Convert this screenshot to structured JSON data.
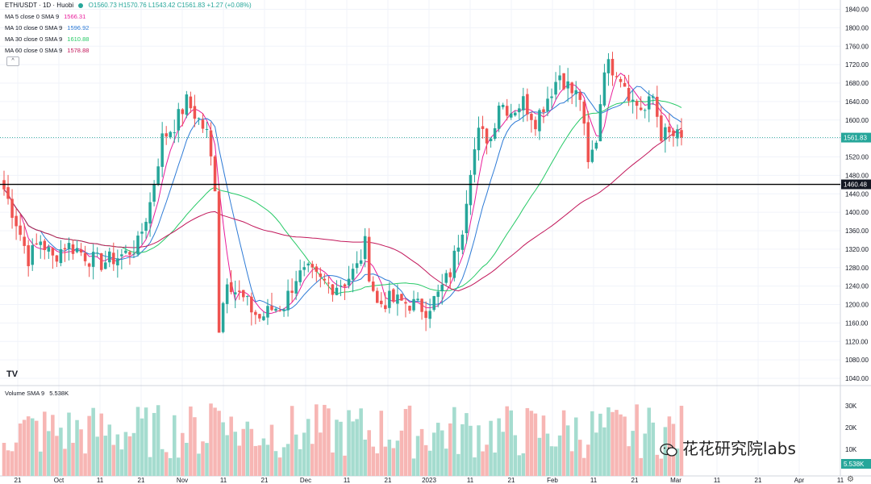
{
  "header": {
    "symbol": "ETH/USDT · 1D · Huobi",
    "ohlc": "O1560.73  H1570.76  L1543.42  C1561.83  +1.27 (+0.08%)"
  },
  "ma_indicators": [
    {
      "label": "MA 5 close 0 SMA 9",
      "value": "1566.31",
      "color": "#e91e9b"
    },
    {
      "label": "MA 10 close 0 SMA 9",
      "value": "1596.92",
      "color": "#2e7bd6"
    },
    {
      "label": "MA 30 close 0 SMA 9",
      "value": "1610.88",
      "color": "#26c966"
    },
    {
      "label": "MA 60 close 0 SMA 9",
      "value": "1578.88",
      "color": "#c2185b"
    }
  ],
  "volume_indicator": {
    "label": "Volume SMA 9",
    "value": "5.538K"
  },
  "watermark": "花花研究院labs",
  "logo": "TV",
  "collapse_glyph": "^",
  "settings_icon": "gear-icon",
  "colors": {
    "up": "#26a69a",
    "down": "#ef5350",
    "upVol": "#a5dccf",
    "downVol": "#f7b6b4"
  },
  "chart_data": {
    "type": "candlestick",
    "title": "ETH/USDT · 1D · Huobi",
    "ylim": [
      1020,
      1860
    ],
    "y_ticks": [
      1040,
      1080,
      1120,
      1160,
      1200,
      1240,
      1280,
      1320,
      1360,
      1400,
      1440,
      1480,
      1520,
      1560,
      1600,
      1640,
      1680,
      1720,
      1760,
      1800,
      1840
    ],
    "x_ticks": [
      "21",
      "Oct",
      "11",
      "21",
      "Nov",
      "11",
      "21",
      "Dec",
      "11",
      "21",
      "2023",
      "11",
      "21",
      "Feb",
      "11",
      "21",
      "Mar",
      "11",
      "21",
      "Apr",
      "11"
    ],
    "horizontal_level": 1460.48,
    "last_price": "1561.83",
    "level_label": "1460.48",
    "volume_ticks": [
      "30K",
      "20K",
      "10K"
    ],
    "volume_last": "5.538K",
    "close_anchors": [
      [
        0,
        1450
      ],
      [
        3,
        1380
      ],
      [
        6,
        1300
      ],
      [
        9,
        1340
      ],
      [
        12,
        1300
      ],
      [
        15,
        1330
      ],
      [
        18,
        1320
      ],
      [
        21,
        1300
      ],
      [
        24,
        1290
      ],
      [
        27,
        1300
      ],
      [
        30,
        1310
      ],
      [
        33,
        1330
      ],
      [
        36,
        1420
      ],
      [
        39,
        1560
      ],
      [
        42,
        1590
      ],
      [
        45,
        1640
      ],
      [
        48,
        1600
      ],
      [
        50,
        1570
      ],
      [
        52,
        1460
      ],
      [
        53,
        1150
      ],
      [
        55,
        1260
      ],
      [
        57,
        1230
      ],
      [
        60,
        1200
      ],
      [
        63,
        1170
      ],
      [
        66,
        1190
      ],
      [
        69,
        1200
      ],
      [
        72,
        1260
      ],
      [
        75,
        1270
      ],
      [
        78,
        1250
      ],
      [
        81,
        1240
      ],
      [
        84,
        1250
      ],
      [
        87,
        1280
      ],
      [
        89,
        1330
      ],
      [
        90,
        1270
      ],
      [
        92,
        1200
      ],
      [
        95,
        1210
      ],
      [
        98,
        1205
      ],
      [
        101,
        1200
      ],
      [
        104,
        1190
      ],
      [
        107,
        1220
      ],
      [
        110,
        1270
      ],
      [
        113,
        1370
      ],
      [
        115,
        1500
      ],
      [
        117,
        1570
      ],
      [
        120,
        1560
      ],
      [
        122,
        1640
      ],
      [
        125,
        1620
      ],
      [
        128,
        1640
      ],
      [
        131,
        1600
      ],
      [
        134,
        1650
      ],
      [
        137,
        1700
      ],
      [
        140,
        1660
      ],
      [
        142,
        1650
      ],
      [
        144,
        1500
      ],
      [
        146,
        1560
      ],
      [
        148,
        1720
      ],
      [
        151,
        1710
      ],
      [
        153,
        1680
      ],
      [
        155,
        1640
      ],
      [
        158,
        1620
      ],
      [
        160,
        1650
      ],
      [
        162,
        1570
      ],
      [
        165,
        1565
      ],
      [
        167,
        1562
      ]
    ]
  }
}
